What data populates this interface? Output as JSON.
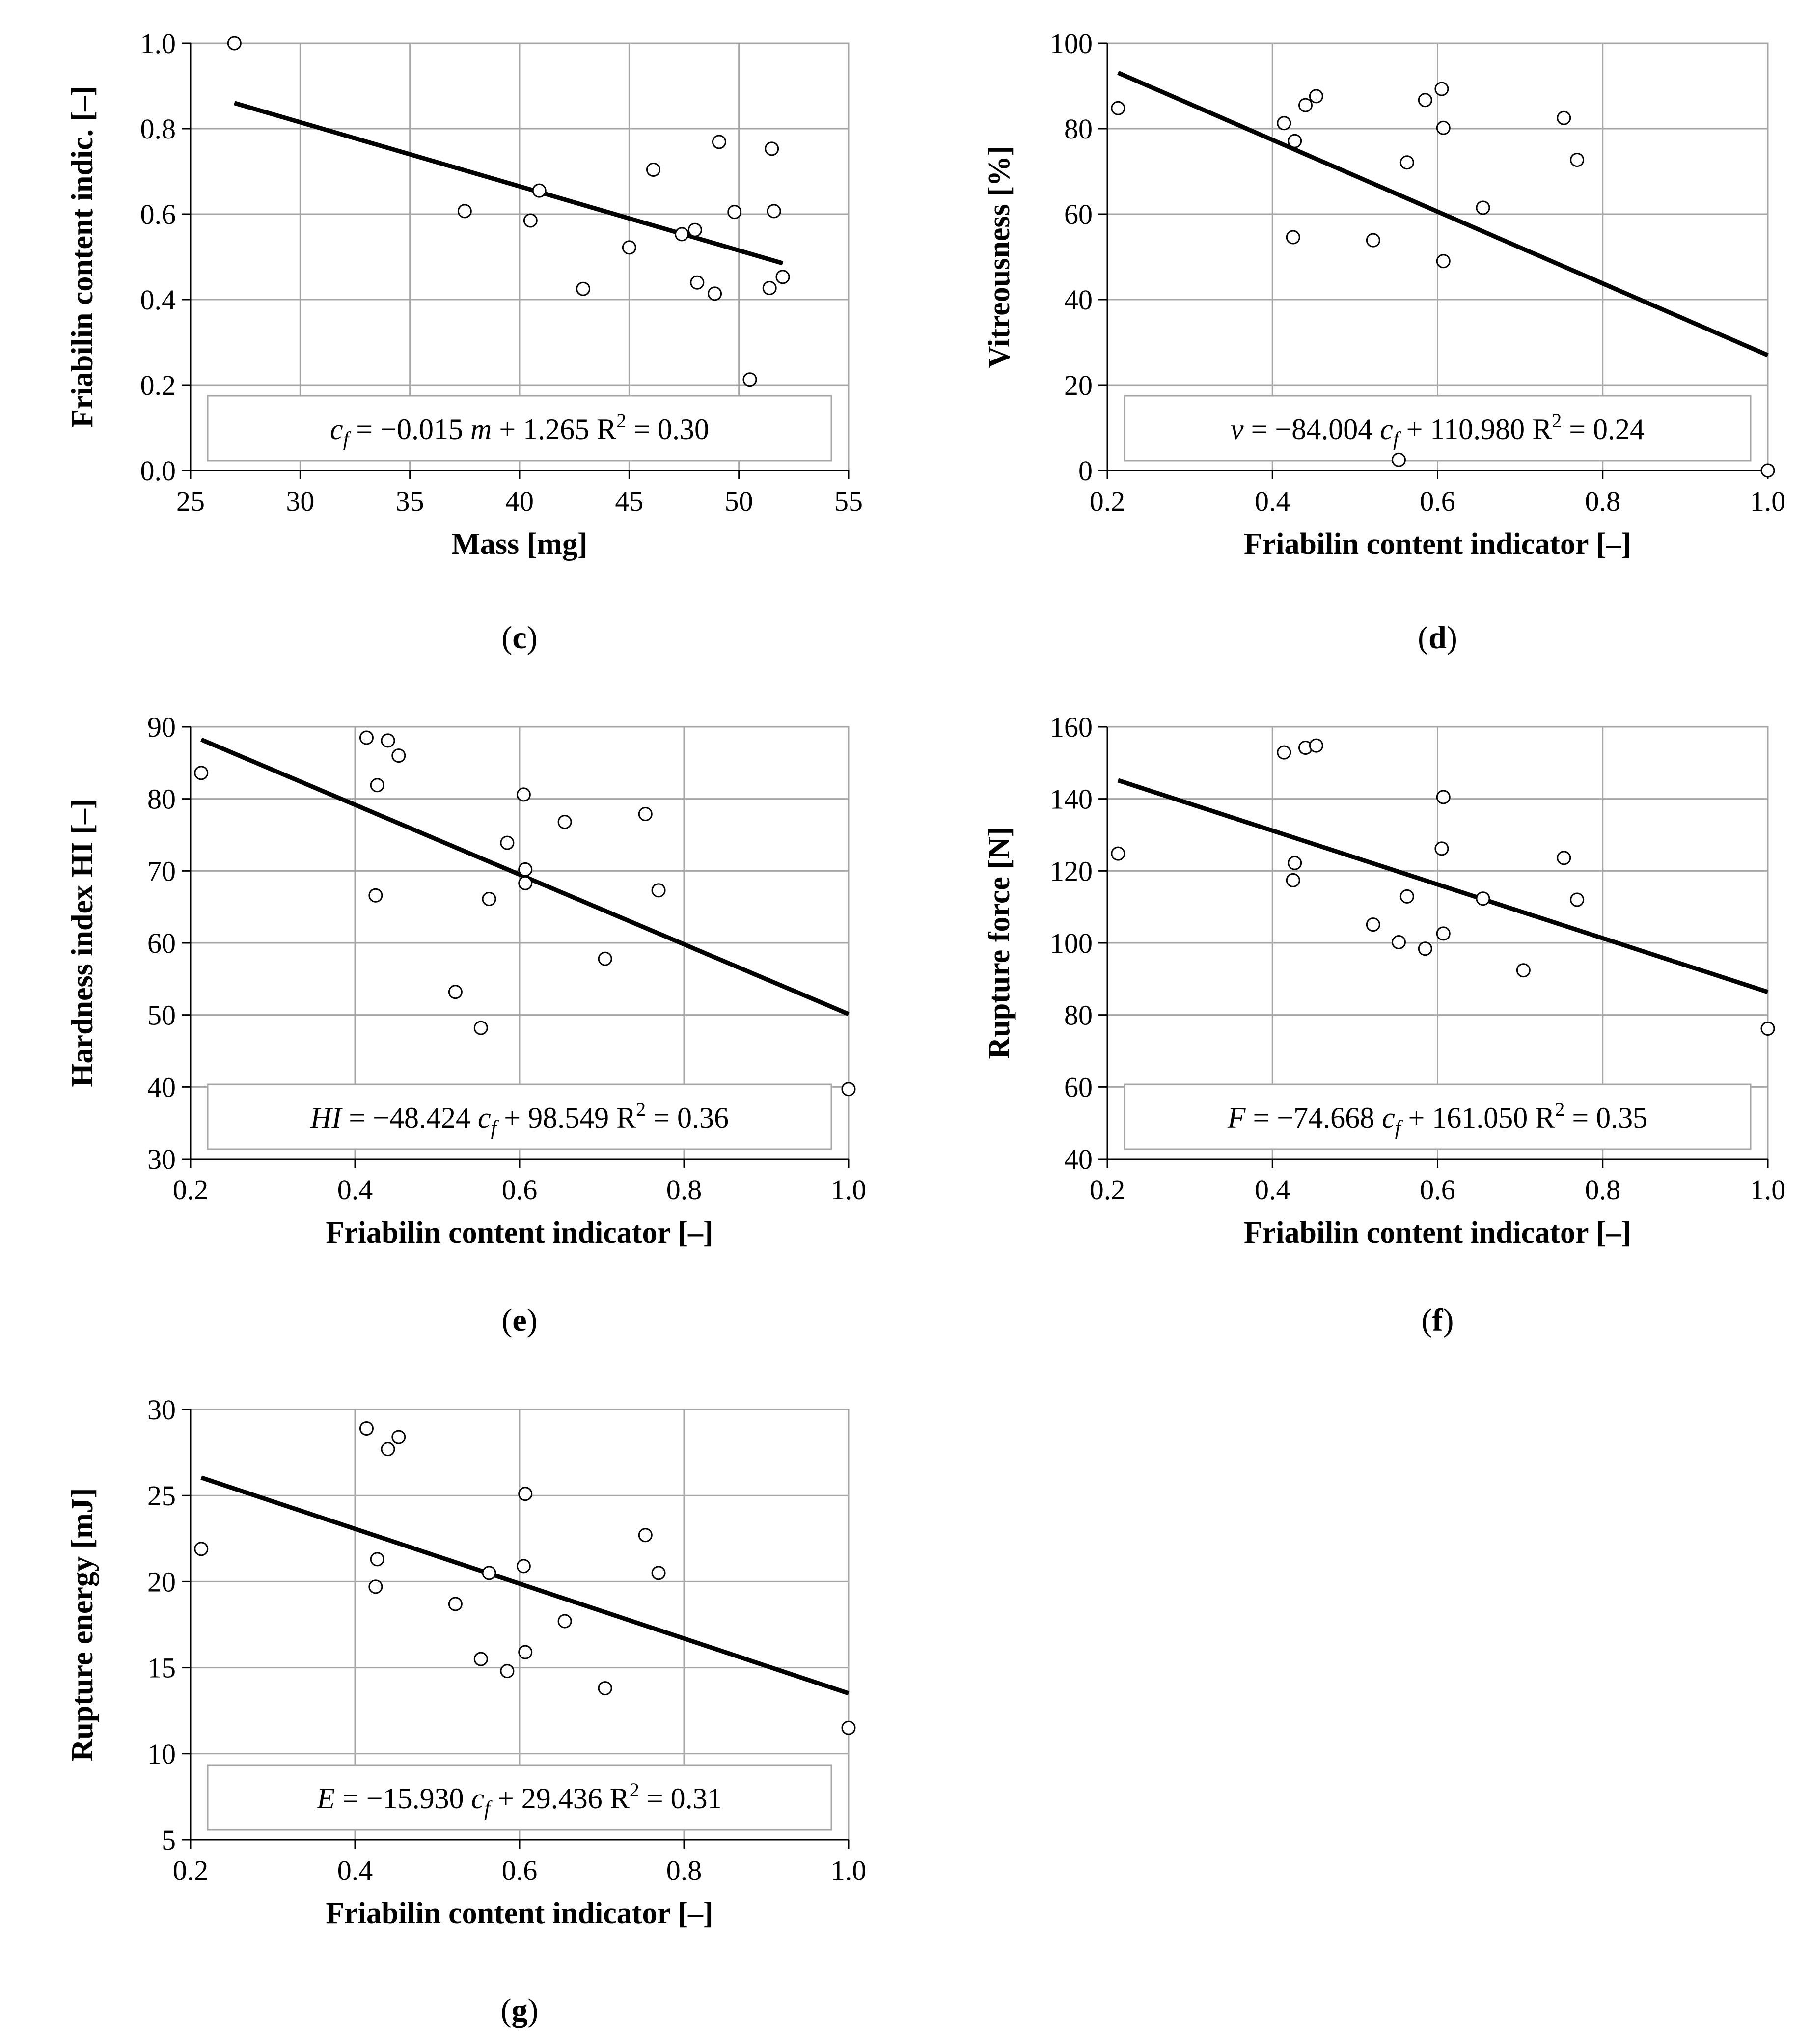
{
  "figure": {
    "line_color": "#000000",
    "grid_color": "#a6a6a6",
    "marker_fill": "#ffffff"
  },
  "chart_data": [
    {
      "id": "c",
      "type": "scatter",
      "panel_label": "c",
      "xlabel": "Mass [mg]",
      "ylabel": "Friabilin content indic. [–]",
      "xlim": [
        25,
        55
      ],
      "ylim": [
        0.0,
        1.0
      ],
      "xticks": [
        "25",
        "30",
        "35",
        "40",
        "45",
        "50",
        "55"
      ],
      "yticks": [
        "0.0",
        "0.2",
        "0.4",
        "0.6",
        "0.8",
        "1.0"
      ],
      "grid": true,
      "x": [
        27.0,
        37.5,
        40.5,
        40.9,
        42.9,
        45.0,
        46.1,
        47.4,
        48.0,
        48.1,
        48.9,
        49.1,
        49.8,
        50.5,
        51.4,
        51.5,
        51.6,
        52.0
      ],
      "y": [
        1.0,
        0.607,
        0.585,
        0.655,
        0.425,
        0.522,
        0.704,
        0.553,
        0.563,
        0.44,
        0.414,
        0.769,
        0.605,
        0.213,
        0.427,
        0.753,
        0.607,
        0.453
      ],
      "fit": {
        "slope": -0.015,
        "intercept": 1.265,
        "x_range": [
          27.0,
          52.0
        ]
      },
      "equation": {
        "var": "c",
        "sub": "f",
        "eq": " = −0.015 ",
        "mvar": "m",
        "rest": " + 1.265",
        "r2": "   R",
        "sup": "2",
        "r2val": " = 0.30"
      }
    },
    {
      "id": "d",
      "type": "scatter",
      "panel_label": "d",
      "xlabel": "Friabilin content indicator [–]",
      "ylabel": "Vitreousness [%]",
      "xlim": [
        0.2,
        1.0
      ],
      "ylim": [
        0,
        100
      ],
      "xticks": [
        "0.2",
        "0.4",
        "0.6",
        "0.8",
        "1.0"
      ],
      "yticks": [
        "0",
        "20",
        "40",
        "60",
        "80",
        "100"
      ],
      "grid": true,
      "x": [
        0.213,
        0.414,
        0.425,
        0.44,
        0.453,
        0.427,
        0.522,
        0.553,
        0.563,
        0.585,
        0.605,
        0.607,
        0.607,
        0.655,
        0.753,
        0.769,
        1.0
      ],
      "y": [
        84.8,
        81.3,
        54.6,
        85.5,
        87.6,
        77.1,
        53.9,
        2.5,
        72.1,
        86.7,
        89.3,
        80.2,
        49.0,
        61.5,
        82.5,
        72.7,
        0.0
      ],
      "fit": {
        "slope": -84.004,
        "intercept": 110.98,
        "x_range": [
          0.213,
          1.0
        ]
      },
      "equation": {
        "var": "v",
        "eq": " = −84.004 ",
        "cvar": "c",
        "sub": "f",
        "rest": " + 110.980",
        "r2": "   R",
        "sup": "2",
        "r2val": " = 0.24"
      }
    },
    {
      "id": "e",
      "type": "scatter",
      "panel_label": "e",
      "xlabel": "Friabilin content indicator [–]",
      "ylabel": "Hardness index HI [–]",
      "xlim": [
        0.2,
        1.0
      ],
      "ylim": [
        30,
        90
      ],
      "xticks": [
        "0.2",
        "0.4",
        "0.6",
        "0.8",
        "1.0"
      ],
      "yticks": [
        "30",
        "40",
        "50",
        "60",
        "70",
        "80",
        "90"
      ],
      "grid": true,
      "x": [
        0.213,
        0.414,
        0.425,
        0.427,
        0.44,
        0.453,
        0.522,
        0.553,
        0.563,
        0.585,
        0.605,
        0.607,
        0.607,
        0.655,
        0.704,
        0.753,
        0.769,
        1.0
      ],
      "y": [
        83.6,
        88.5,
        66.6,
        81.9,
        88.1,
        86.0,
        53.2,
        48.2,
        66.1,
        73.9,
        80.6,
        70.2,
        68.3,
        76.8,
        57.8,
        77.9,
        67.3,
        39.7
      ],
      "fit": {
        "slope": -48.424,
        "intercept": 98.549,
        "x_range": [
          0.213,
          1.0
        ]
      },
      "equation": {
        "var": "HI",
        "eq": " = −48.424 ",
        "cvar": "c",
        "sub": "f",
        "rest": " + 98.549",
        "r2": "   R",
        "sup": "2",
        "r2val": " = 0.36"
      }
    },
    {
      "id": "f",
      "type": "scatter",
      "panel_label": "f",
      "xlabel": "Friabilin content indicator [–]",
      "ylabel": "Rupture force [N]",
      "xlim": [
        0.2,
        1.0
      ],
      "ylim": [
        40,
        160
      ],
      "xticks": [
        "0.2",
        "0.4",
        "0.6",
        "0.8",
        "1.0"
      ],
      "yticks": [
        "40",
        "60",
        "80",
        "100",
        "120",
        "140",
        "160"
      ],
      "grid": true,
      "x": [
        0.213,
        0.414,
        0.425,
        0.427,
        0.44,
        0.453,
        0.522,
        0.553,
        0.563,
        0.585,
        0.605,
        0.607,
        0.607,
        0.655,
        0.704,
        0.753,
        0.769,
        1.0
      ],
      "y": [
        124.8,
        152.9,
        117.4,
        122.2,
        154.2,
        154.8,
        105.1,
        100.2,
        112.9,
        98.4,
        126.2,
        140.5,
        102.6,
        112.3,
        92.4,
        123.6,
        112.0,
        76.2
      ],
      "fit": {
        "slope": -74.668,
        "intercept": 161.05,
        "x_range": [
          0.213,
          1.0
        ]
      },
      "equation": {
        "var": "F",
        "eq": " = −74.668 ",
        "cvar": "c",
        "sub": "f",
        "rest": " + 161.050",
        "r2": "   R",
        "sup": "2",
        "r2val": " = 0.35"
      }
    },
    {
      "id": "g",
      "type": "scatter",
      "panel_label": "g",
      "xlabel": "Friabilin content indicator [–]",
      "ylabel": "Rupture energy [mJ]",
      "xlim": [
        0.2,
        1.0
      ],
      "ylim": [
        5,
        30
      ],
      "xticks": [
        "0.2",
        "0.4",
        "0.6",
        "0.8",
        "1.0"
      ],
      "yticks": [
        "5",
        "10",
        "15",
        "20",
        "25",
        "30"
      ],
      "grid": true,
      "x": [
        0.213,
        0.414,
        0.425,
        0.427,
        0.44,
        0.453,
        0.522,
        0.553,
        0.563,
        0.585,
        0.605,
        0.607,
        0.607,
        0.655,
        0.704,
        0.753,
        0.769,
        1.0
      ],
      "y": [
        21.9,
        28.9,
        19.7,
        21.3,
        27.7,
        28.4,
        18.7,
        15.5,
        20.5,
        14.8,
        20.9,
        25.1,
        15.9,
        17.7,
        13.8,
        22.7,
        20.5,
        11.5
      ],
      "fit": {
        "slope": -15.93,
        "intercept": 29.436,
        "x_range": [
          0.213,
          1.0
        ]
      },
      "equation": {
        "var": "E",
        "eq": " = −15.930 ",
        "cvar": "c",
        "sub": "f",
        "rest": " + 29.436",
        "r2": "   R",
        "sup": "2",
        "r2val": " = 0.31"
      }
    }
  ]
}
